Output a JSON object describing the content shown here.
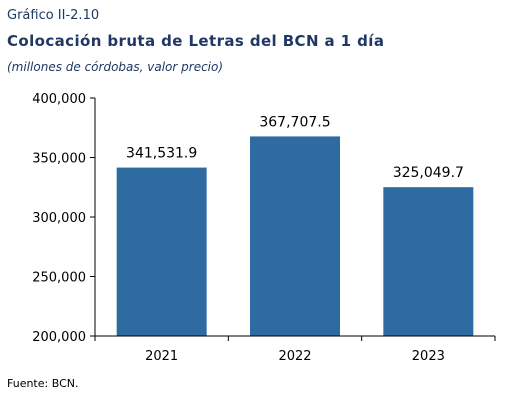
{
  "figure": {
    "label": "Gráfico II-2.10",
    "title": "Colocación bruta de Letras del BCN a 1 día",
    "subtitle": "(millones de córdobas, valor precio)",
    "source": "Fuente: BCN."
  },
  "chart_data": {
    "type": "bar",
    "title": "Colocación bruta de Letras del BCN a 1 día",
    "ylabel": "",
    "xlabel": "",
    "categories": [
      "2021",
      "2022",
      "2023"
    ],
    "values": [
      341531.9,
      367707.5,
      325049.7
    ],
    "data_labels": [
      "341,531.9",
      "367,707.5",
      "325,049.7"
    ],
    "ylim": [
      200000,
      400000
    ],
    "yticks": [
      200000,
      250000,
      300000,
      350000,
      400000
    ],
    "ytick_labels": [
      "200,000",
      "250,000",
      "300,000",
      "350,000",
      "400,000"
    ],
    "grid": false,
    "legend": "none",
    "colors": {
      "bar": "#2e6ba0",
      "axis": "#000000",
      "title": "#1f3864"
    }
  }
}
